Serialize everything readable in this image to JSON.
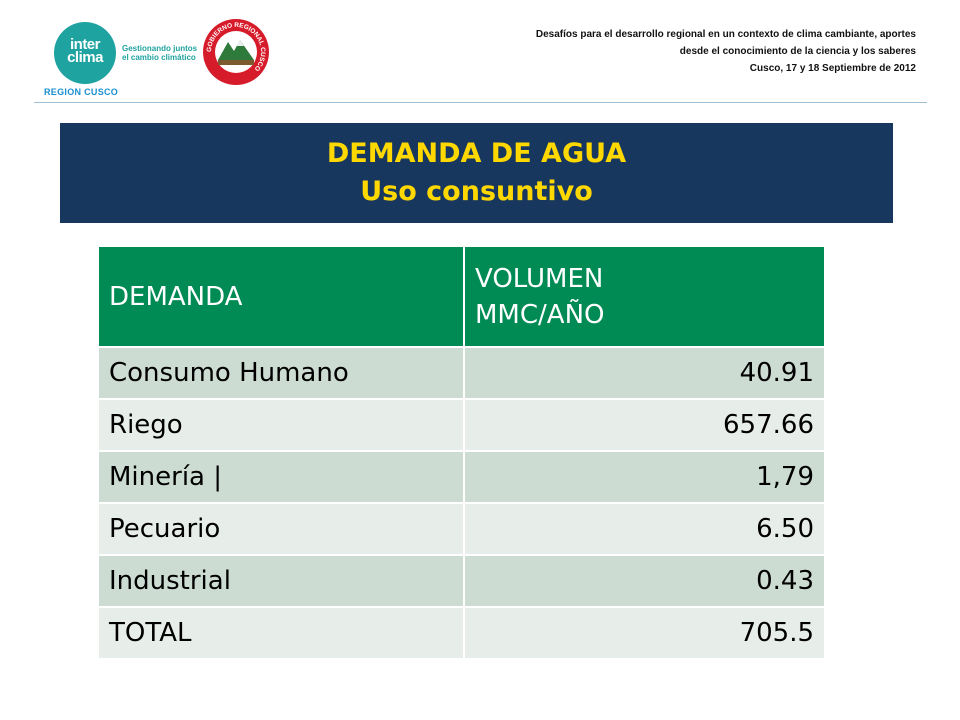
{
  "header": {
    "logo_word_1": "inter",
    "logo_word_2": "clima",
    "logo_tagline_1": "Gestionando juntos",
    "logo_tagline_2": "el cambio climático",
    "region_label": "REGION CUSCO",
    "seal_text": "GOBIERNO REGIONAL CUSCO",
    "event_lines": [
      "Desafíos para el desarrollo regional en un contexto de clima cambiante, aportes",
      "desde el conocimiento de la ciencia y los saberes",
      "Cusco, 17 y 18 Septiembre de 2012"
    ]
  },
  "title": {
    "line1": "DEMANDA DE AGUA",
    "line2": "Uso consuntivo"
  },
  "table": {
    "headers": [
      "DEMANDA",
      "VOLUMEN",
      "MMC/AÑO"
    ],
    "rows": [
      {
        "demanda": "Consumo Humano",
        "volumen": "40.91"
      },
      {
        "demanda": "Riego",
        "volumen": "657.66"
      },
      {
        "demanda": "Minería |",
        "volumen": "1,79"
      },
      {
        "demanda": "Pecuario",
        "volumen": "6.50"
      },
      {
        "demanda": "Industrial",
        "volumen": "0.43"
      },
      {
        "demanda": "TOTAL",
        "volumen": "705.5"
      }
    ]
  },
  "colors": {
    "title_bg": "#17375e",
    "title_text": "#ffd800",
    "header_bg": "#008a54",
    "row_odd": "#cddcd3",
    "row_even": "#e7eee9",
    "logo_teal": "#1fa3a0"
  }
}
